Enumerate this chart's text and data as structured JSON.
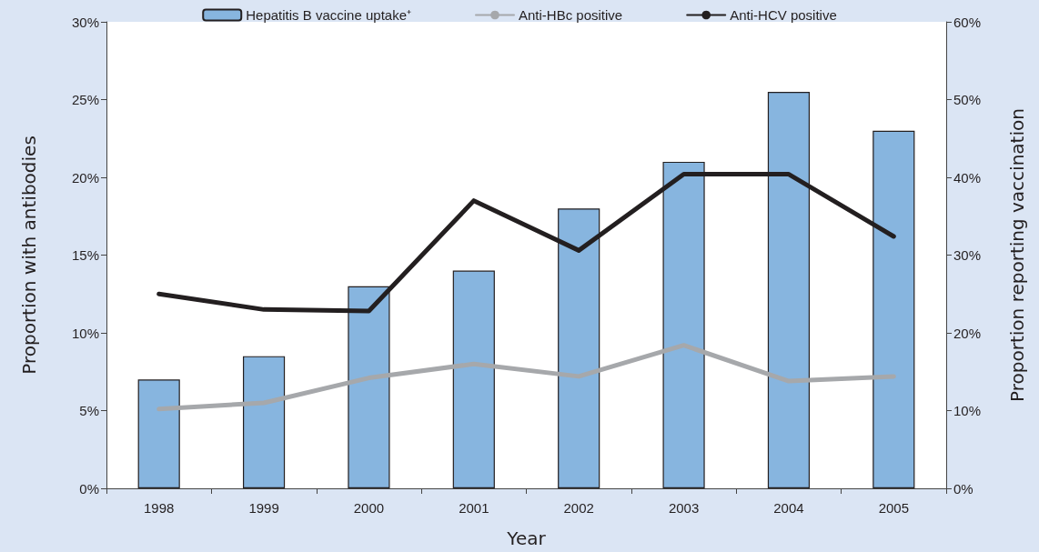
{
  "chart_data": {
    "type": "bar",
    "xlabel": "Year",
    "ylabel": "Proportion with antibodies",
    "y2label": "Proportion reporting vaccination",
    "categories": [
      "1998",
      "1999",
      "2000",
      "2001",
      "2002",
      "2003",
      "2004",
      "2005"
    ],
    "series": [
      {
        "name": "Hepatitis B vaccine uptake⁺",
        "axis": "y2",
        "color": "#87b5df",
        "values": [
          14,
          17,
          26,
          28,
          36,
          42,
          51,
          46
        ]
      },
      {
        "name": "Anti-HBc positive",
        "type": "line",
        "axis": "y",
        "color": "#a6a8ab",
        "values": [
          5.1,
          5.5,
          7.1,
          8.0,
          7.2,
          9.2,
          6.9,
          7.2
        ]
      },
      {
        "name": "Anti-HCV positive",
        "type": "line",
        "axis": "y",
        "color": "#231f20",
        "values": [
          12.5,
          11.5,
          11.4,
          18.5,
          15.3,
          20.2,
          20.2,
          16.2
        ]
      }
    ],
    "ylim": [
      0,
      30
    ],
    "yticks": [
      {
        "value": 0,
        "label": "0%"
      },
      {
        "value": 5,
        "label": "5%"
      },
      {
        "value": 10,
        "label": "10%"
      },
      {
        "value": 15,
        "label": "15%"
      },
      {
        "value": 20,
        "label": "20%"
      },
      {
        "value": 25,
        "label": "25%"
      },
      {
        "value": 30,
        "label": "30%"
      }
    ],
    "y2lim": [
      0,
      60
    ],
    "y2ticks": [
      {
        "value": 0,
        "label": "0%"
      },
      {
        "value": 10,
        "label": "10%"
      },
      {
        "value": 20,
        "label": "20%"
      },
      {
        "value": 30,
        "label": "30%"
      },
      {
        "value": 40,
        "label": "40%"
      },
      {
        "value": 50,
        "label": "50%"
      },
      {
        "value": 60,
        "label": "60%"
      }
    ],
    "grid": false,
    "legend": "top",
    "marker": "none",
    "line_style": "solid"
  }
}
